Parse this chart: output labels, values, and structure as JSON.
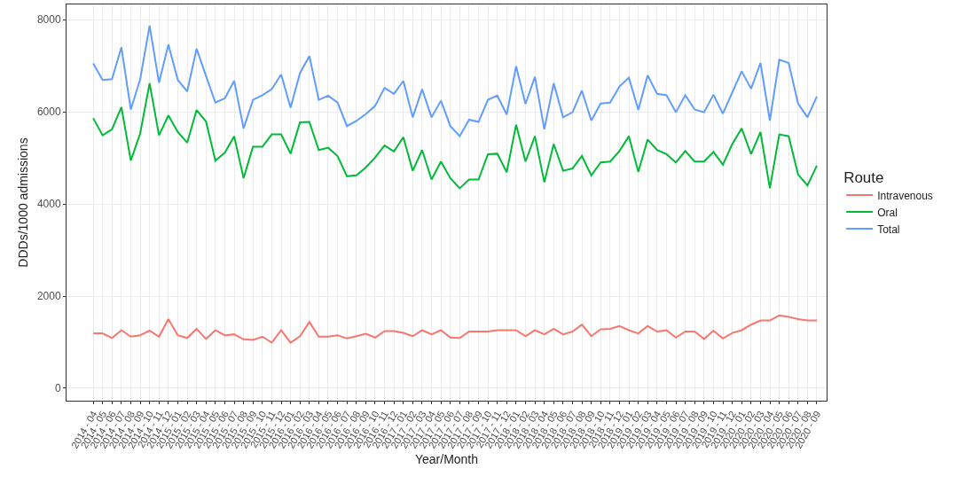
{
  "chart_data": {
    "type": "line",
    "xlabel": "Year/Month",
    "ylabel": "DDDs/1000 admissions",
    "legend_title": "Route",
    "legend": "right",
    "grid": true,
    "ylim": [
      -270,
      8330
    ],
    "yticks": [
      0,
      2000,
      4000,
      6000,
      8000
    ],
    "categories": [
      "2014 - 04",
      "2014 - 05",
      "2014 - 06",
      "2014 - 07",
      "2014 - 08",
      "2014 - 09",
      "2014 - 10",
      "2014 - 11",
      "2014 - 12",
      "2015 - 01",
      "2015 - 02",
      "2015 - 03",
      "2015 - 04",
      "2015 - 05",
      "2015 - 06",
      "2015 - 07",
      "2015 - 08",
      "2015 - 09",
      "2015 - 10",
      "2015 - 11",
      "2015 - 12",
      "2016 - 01",
      "2016 - 02",
      "2016 - 03",
      "2016 - 04",
      "2016 - 05",
      "2016 - 06",
      "2016 - 07",
      "2016 - 08",
      "2016 - 09",
      "2016 - 10",
      "2016 - 11",
      "2016 - 12",
      "2017 - 01",
      "2017 - 02",
      "2017 - 03",
      "2017 - 04",
      "2017 - 05",
      "2017 - 06",
      "2017 - 07",
      "2017 - 08",
      "2017 - 09",
      "2017 - 10",
      "2017 - 11",
      "2017 - 12",
      "2018 - 01",
      "2018 - 02",
      "2018 - 03",
      "2018 - 04",
      "2018 - 05",
      "2018 - 06",
      "2018 - 07",
      "2018 - 08",
      "2018 - 09",
      "2018 - 10",
      "2018 - 11",
      "2018 - 12",
      "2019 - 01",
      "2019 - 02",
      "2019 - 03",
      "2019 - 04",
      "2019 - 05",
      "2019 - 06",
      "2019 - 07",
      "2019 - 08",
      "2019 - 09",
      "2019 - 10",
      "2019 - 11",
      "2019 - 12",
      "2020 - 01",
      "2020 - 02",
      "2020 - 03",
      "2020 - 04",
      "2020 - 05",
      "2020 - 06",
      "2020 - 07",
      "2020 - 08",
      "2020 - 09"
    ],
    "series": [
      {
        "name": "Intravenous",
        "color": "#f8766d",
        "values": [
          1190,
          1190,
          1090,
          1260,
          1120,
          1150,
          1250,
          1120,
          1500,
          1150,
          1090,
          1290,
          1070,
          1260,
          1150,
          1170,
          1060,
          1050,
          1120,
          990,
          1260,
          990,
          1130,
          1440,
          1120,
          1120,
          1150,
          1080,
          1130,
          1180,
          1100,
          1240,
          1240,
          1200,
          1130,
          1260,
          1170,
          1260,
          1100,
          1090,
          1230,
          1230,
          1230,
          1260,
          1260,
          1260,
          1130,
          1260,
          1170,
          1290,
          1170,
          1230,
          1380,
          1130,
          1280,
          1290,
          1350,
          1260,
          1190,
          1350,
          1230,
          1260,
          1100,
          1230,
          1230,
          1070,
          1250,
          1080,
          1200,
          1260,
          1380,
          1470,
          1470,
          1580,
          1550,
          1500,
          1470,
          1470
        ]
      },
      {
        "name": "Oral",
        "color": "#00ba38",
        "values": [
          5860,
          5490,
          5620,
          6100,
          4940,
          5530,
          6620,
          5490,
          5920,
          5560,
          5330,
          6040,
          5790,
          4940,
          5110,
          5470,
          4560,
          5240,
          5240,
          5510,
          5510,
          5090,
          5770,
          5780,
          5170,
          5220,
          5040,
          4600,
          4620,
          4790,
          5010,
          5270,
          5140,
          5450,
          4720,
          5170,
          4530,
          4920,
          4560,
          4340,
          4530,
          4530,
          5080,
          5090,
          4690,
          5720,
          4920,
          5470,
          4470,
          5300,
          4720,
          4770,
          5040,
          4620,
          4900,
          4920,
          5150,
          5470,
          4700,
          5400,
          5170,
          5080,
          4900,
          5150,
          4920,
          4920,
          5130,
          4850,
          5300,
          5640,
          5080,
          5560,
          4340,
          5510,
          5470,
          4640,
          4400,
          4830
        ]
      },
      {
        "name": "Total",
        "color": "#619cff",
        "values": [
          7050,
          6690,
          6710,
          7400,
          6050,
          6710,
          7870,
          6630,
          7460,
          6690,
          6440,
          7370,
          6780,
          6200,
          6290,
          6670,
          5640,
          6260,
          6360,
          6490,
          6810,
          6090,
          6840,
          7210,
          6260,
          6350,
          6200,
          5690,
          5800,
          5950,
          6130,
          6520,
          6390,
          6670,
          5880,
          6490,
          5880,
          6240,
          5690,
          5470,
          5830,
          5780,
          6260,
          6350,
          5940,
          6990,
          6170,
          6760,
          5620,
          6620,
          5880,
          5990,
          6460,
          5810,
          6180,
          6200,
          6550,
          6740,
          6040,
          6790,
          6390,
          6360,
          5990,
          6360,
          6050,
          5990,
          6370,
          5960,
          6420,
          6880,
          6500,
          7060,
          5810,
          7130,
          7060,
          6180,
          5880,
          6330
        ]
      }
    ]
  }
}
